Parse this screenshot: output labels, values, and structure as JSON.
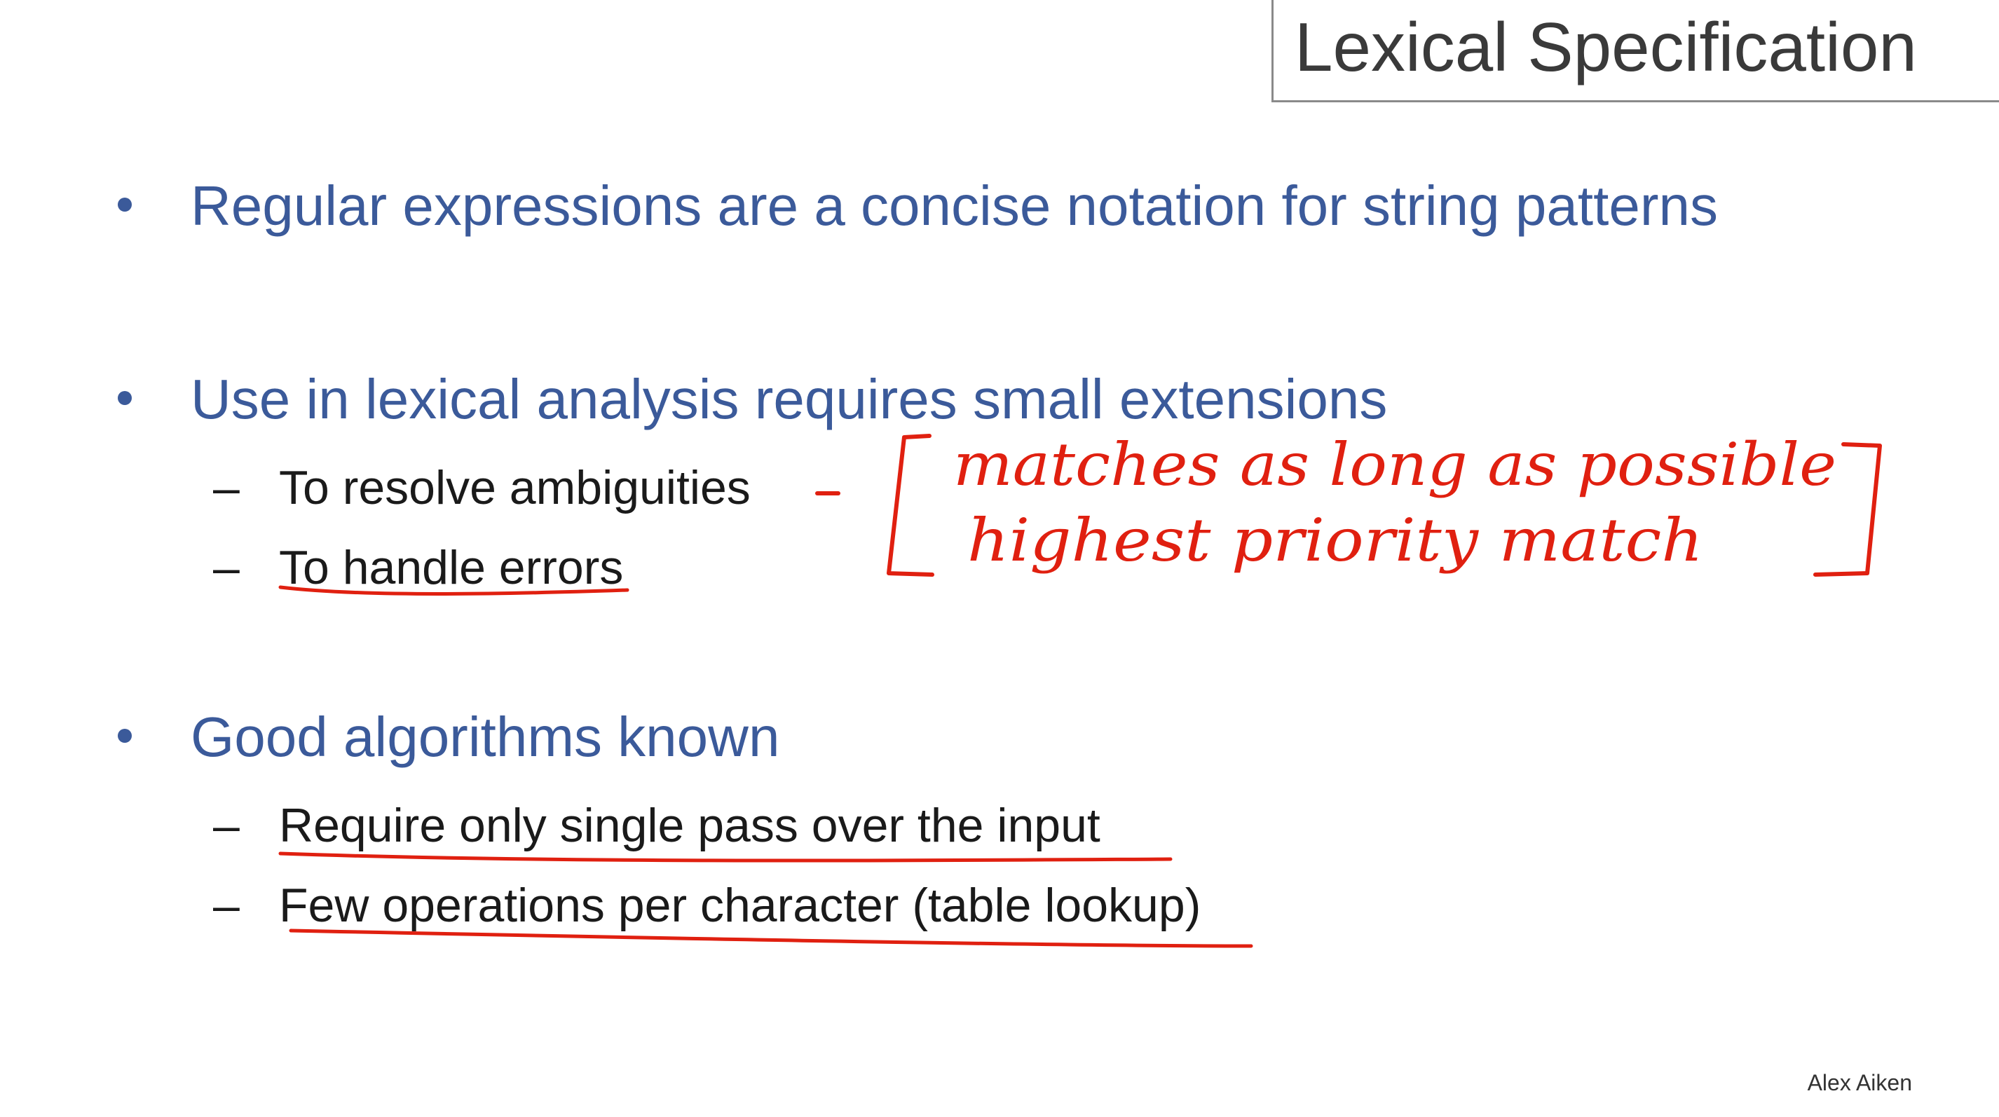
{
  "slide": {
    "title": "Lexical Specification",
    "bullets": [
      {
        "text": "Regular expressions are a concise notation for string patterns",
        "subs": []
      },
      {
        "text": "Use in lexical analysis requires small extensions",
        "subs": [
          "To resolve ambiguities",
          "To handle errors"
        ]
      },
      {
        "text": "Good algorithms known",
        "subs": [
          "Require only single pass over the input",
          "Few operations per character (table lookup)"
        ]
      }
    ],
    "footer": "Alex Aiken"
  },
  "annotations": {
    "line1": "matches as long as possible",
    "line2": "highest priority match"
  },
  "colors": {
    "bullet_blue": "#3b5a9a",
    "sub_text": "#1a1a1a",
    "ink_red": "#e02010",
    "title_gray": "#3a3a3a"
  }
}
